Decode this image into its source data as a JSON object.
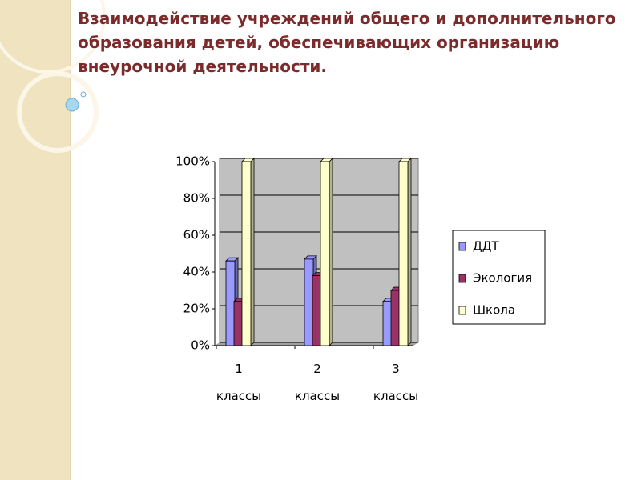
{
  "title": "Взаимодействие учреждений общего и дополнительного образования детей, обеспечивающих организацию внеурочной деятельности.",
  "chart_data": {
    "type": "bar",
    "categories": [
      "1 классы",
      "2 классы",
      "3 классы"
    ],
    "series": [
      {
        "name": "ДДТ",
        "color": "#9999ff",
        "values": [
          46,
          47,
          24
        ]
      },
      {
        "name": "Экология",
        "color": "#993366",
        "values": [
          24,
          38,
          30
        ]
      },
      {
        "name": "Школа",
        "color": "#ffffcc",
        "values": [
          100,
          100,
          100
        ]
      }
    ],
    "ylim": [
      0,
      100
    ],
    "yticks": [
      {
        "value": 0,
        "label": "0%"
      },
      {
        "value": 20,
        "label": "20%"
      },
      {
        "value": 40,
        "label": "40%"
      },
      {
        "value": 60,
        "label": "60%"
      },
      {
        "value": 80,
        "label": "80%"
      },
      {
        "value": 100,
        "label": "100%"
      }
    ],
    "grid": true,
    "legend": "right"
  }
}
